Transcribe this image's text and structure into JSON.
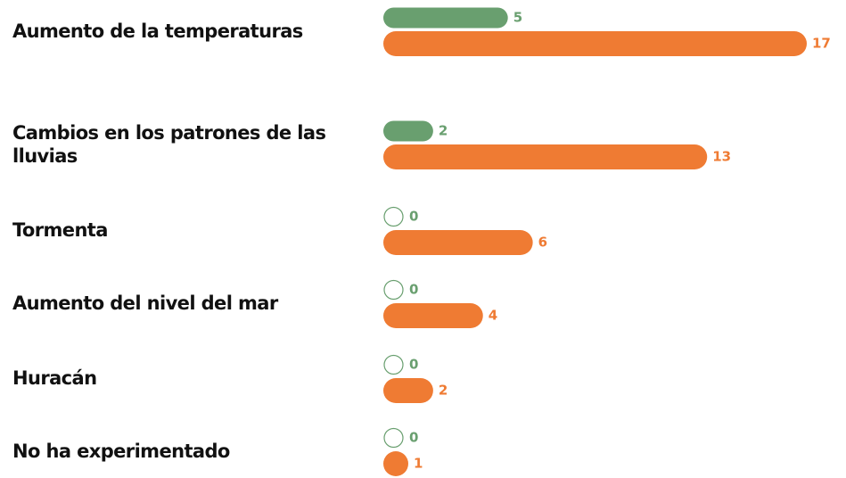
{
  "chart_data": {
    "type": "bar",
    "orientation": "horizontal",
    "categories": [
      "Aumento de la temperaturas",
      "Cambios en los patrones de las lluvias",
      "Tormenta",
      "Aumento del nivel del mar",
      "Huracán",
      "No ha experimentado"
    ],
    "series": [
      {
        "color": "#699f6f",
        "values": [
          5,
          2,
          0,
          0,
          0,
          0
        ]
      },
      {
        "color": "#ef7b33",
        "values": [
          17,
          13,
          6,
          4,
          2,
          1
        ]
      }
    ]
  }
}
